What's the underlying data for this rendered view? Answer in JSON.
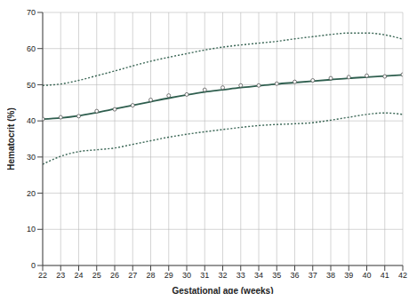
{
  "chart_data": {
    "type": "line",
    "xlabel": "Gestational age (weeks)",
    "ylabel": "Hematocrit (%)",
    "x": [
      22,
      23,
      24,
      25,
      26,
      27,
      28,
      29,
      30,
      31,
      32,
      33,
      34,
      35,
      36,
      37,
      38,
      39,
      40,
      41,
      42
    ],
    "series": [
      {
        "type": "line",
        "line_style": "dotted",
        "color": "#3a6655",
        "values": [
          49.8,
          50.2,
          51.2,
          52.5,
          53.8,
          55.2,
          56.5,
          57.6,
          58.6,
          59.6,
          60.4,
          61,
          61.5,
          62,
          62.7,
          63.3,
          63.9,
          64.3,
          64.3,
          63.8,
          62.6
        ]
      },
      {
        "type": "line",
        "line_style": "solid",
        "color": "#2e5e4e",
        "values": [
          40.5,
          40.8,
          41.4,
          42.3,
          43.3,
          44.3,
          45.3,
          46.3,
          47.2,
          48,
          48.6,
          49.2,
          49.7,
          50.2,
          50.6,
          51,
          51.4,
          51.8,
          52.1,
          52.4,
          52.7
        ]
      },
      {
        "type": "scatter",
        "marker": "circle",
        "color": "#555555",
        "values": [
          40.5,
          41,
          41.3,
          42.7,
          43.2,
          44.3,
          45.8,
          47,
          47.3,
          48.6,
          49.2,
          49.8,
          49.8,
          50.3,
          50.8,
          51.2,
          51.8,
          52.1,
          52.5,
          52.3,
          52.8
        ]
      },
      {
        "type": "line",
        "line_style": "dotted",
        "color": "#3a6655",
        "values": [
          28,
          30.2,
          31.5,
          32,
          32.5,
          33.5,
          34.5,
          35.5,
          36.3,
          37,
          37.6,
          38.2,
          38.7,
          39,
          39.2,
          39.5,
          40.2,
          41,
          41.8,
          42.2,
          41.8
        ]
      }
    ],
    "xlim": [
      22,
      42
    ],
    "xticks": [
      22,
      23,
      24,
      25,
      26,
      27,
      28,
      29,
      30,
      31,
      32,
      33,
      34,
      35,
      36,
      37,
      38,
      39,
      40,
      41,
      42
    ],
    "ylim": [
      0,
      70
    ],
    "yticks": [
      0,
      10,
      20,
      30,
      40,
      50,
      60,
      70
    ],
    "grid": true
  }
}
